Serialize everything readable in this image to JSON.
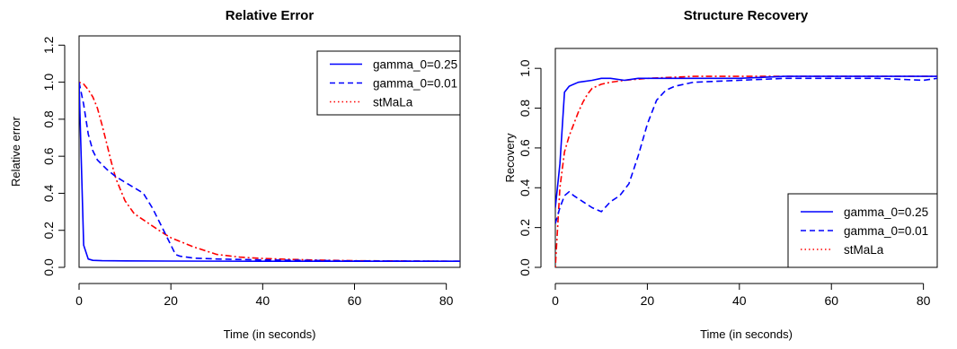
{
  "chart_data": [
    {
      "type": "line",
      "title": "Relative Error",
      "xlabel": "Time (in seconds)",
      "ylabel": "Relative error",
      "xlim": [
        0,
        83
      ],
      "ylim": [
        0,
        1.25
      ],
      "xticks": [
        "0",
        "20",
        "40",
        "60",
        "80"
      ],
      "yticks": [
        "0.0",
        "0.2",
        "0.4",
        "0.6",
        "0.8",
        "1.0",
        "1.2"
      ],
      "grid": false,
      "legend_position": "top-right",
      "legend": [
        "gamma_0=0.25",
        "gamma_0=0.01",
        "stMaLa"
      ],
      "series": [
        {
          "name": "gamma_0=0.25",
          "color": "#0000ff",
          "style": "solid",
          "x": [
            0,
            1,
            2,
            3,
            5,
            10,
            20,
            40,
            60,
            83
          ],
          "y": [
            1.0,
            0.12,
            0.045,
            0.038,
            0.036,
            0.035,
            0.034,
            0.033,
            0.033,
            0.033
          ]
        },
        {
          "name": "gamma_0=0.01",
          "color": "#0000ff",
          "style": "dashed",
          "x": [
            0,
            1,
            2,
            3,
            4,
            6,
            8,
            10,
            12,
            14,
            16,
            18,
            20,
            21,
            22,
            25,
            30,
            40,
            60,
            83
          ],
          "y": [
            1.0,
            0.88,
            0.72,
            0.63,
            0.58,
            0.53,
            0.49,
            0.46,
            0.43,
            0.4,
            0.32,
            0.22,
            0.12,
            0.07,
            0.06,
            0.05,
            0.045,
            0.04,
            0.035,
            0.033
          ]
        },
        {
          "name": "stMaLa",
          "color": "#ff0000",
          "style": "dotdash",
          "x": [
            0,
            1,
            2,
            3,
            4,
            5,
            6,
            7,
            8,
            10,
            12,
            15,
            18,
            20,
            25,
            30,
            35,
            40,
            50,
            60,
            83
          ],
          "y": [
            1.0,
            0.99,
            0.96,
            0.92,
            0.86,
            0.77,
            0.67,
            0.57,
            0.48,
            0.36,
            0.29,
            0.24,
            0.19,
            0.16,
            0.11,
            0.07,
            0.055,
            0.048,
            0.04,
            0.036,
            0.033
          ]
        }
      ]
    },
    {
      "type": "line",
      "title": "Structure Recovery",
      "xlabel": "Time (in seconds)",
      "ylabel": "Recovery",
      "xlim": [
        0,
        83
      ],
      "ylim": [
        0,
        1.1
      ],
      "xticks": [
        "0",
        "20",
        "40",
        "60",
        "80"
      ],
      "yticks": [
        "0.0",
        "0.2",
        "0.4",
        "0.6",
        "0.8",
        "1.0"
      ],
      "grid": false,
      "legend_position": "bottom-right",
      "legend": [
        "gamma_0=0.25",
        "gamma_0=0.01",
        "stMaLa"
      ],
      "series": [
        {
          "name": "gamma_0=0.25",
          "color": "#0000ff",
          "style": "solid",
          "x": [
            0,
            1,
            2,
            3,
            5,
            8,
            10,
            12,
            15,
            18,
            20,
            25,
            30,
            35,
            40,
            50,
            60,
            70,
            80,
            83
          ],
          "y": [
            0.3,
            0.52,
            0.88,
            0.91,
            0.93,
            0.94,
            0.95,
            0.95,
            0.94,
            0.95,
            0.95,
            0.95,
            0.95,
            0.95,
            0.95,
            0.96,
            0.96,
            0.96,
            0.96,
            0.96
          ]
        },
        {
          "name": "gamma_0=0.01",
          "color": "#0000ff",
          "style": "dashed",
          "x": [
            0,
            1,
            2,
            3,
            4,
            6,
            8,
            10,
            12,
            14,
            16,
            18,
            20,
            22,
            24,
            26,
            30,
            40,
            50,
            60,
            70,
            80,
            83
          ],
          "y": [
            0.22,
            0.3,
            0.36,
            0.38,
            0.36,
            0.33,
            0.3,
            0.28,
            0.33,
            0.36,
            0.42,
            0.56,
            0.72,
            0.84,
            0.89,
            0.91,
            0.93,
            0.94,
            0.95,
            0.95,
            0.95,
            0.94,
            0.95
          ]
        },
        {
          "name": "stMaLa",
          "color": "#ff0000",
          "style": "dotdash",
          "x": [
            0,
            1,
            2,
            3,
            4,
            5,
            6,
            7,
            8,
            10,
            12,
            15,
            20,
            30,
            40,
            50,
            60,
            70,
            80,
            83
          ],
          "y": [
            0.0,
            0.4,
            0.58,
            0.66,
            0.72,
            0.78,
            0.83,
            0.87,
            0.9,
            0.92,
            0.93,
            0.94,
            0.95,
            0.96,
            0.96,
            0.96,
            0.96,
            0.96,
            0.96,
            0.96
          ]
        }
      ]
    }
  ]
}
